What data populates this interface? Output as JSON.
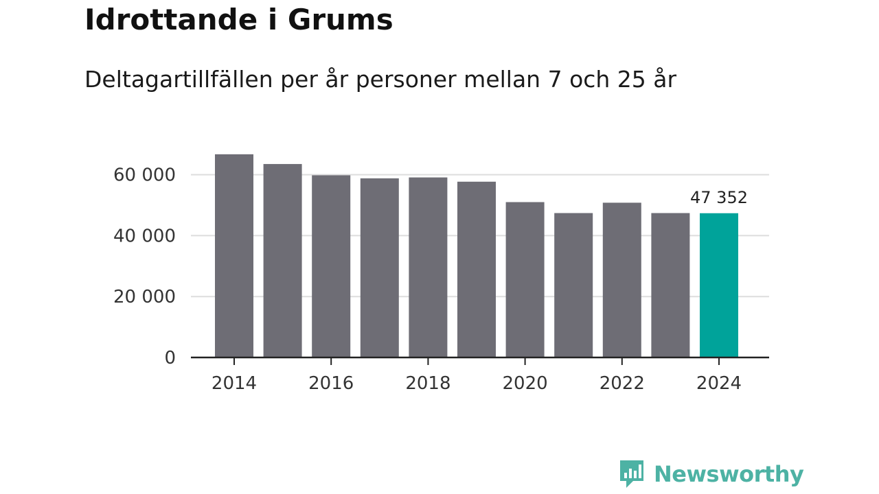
{
  "header": {
    "title": "Idrottande i Grums",
    "subtitle": "Deltagartillfällen per år personer mellan 7 och 25 år"
  },
  "brand": {
    "name": "Newsworthy",
    "color": "#4db2a4"
  },
  "colors": {
    "bar": "#6e6d75",
    "highlight": "#00a39a",
    "grid": "#dddddd",
    "axis": "#222222"
  },
  "chart_data": {
    "type": "bar",
    "categories": [
      "2014",
      "2015",
      "2016",
      "2017",
      "2018",
      "2019",
      "2020",
      "2021",
      "2022",
      "2023",
      "2024"
    ],
    "values": [
      66700,
      63500,
      59800,
      58800,
      59100,
      57700,
      51000,
      47400,
      50800,
      47400,
      47352
    ],
    "highlight_index": 10,
    "data_labels": [
      {
        "index": 10,
        "text": "47 352"
      }
    ],
    "yticks": [
      0,
      20000,
      40000,
      60000
    ],
    "ytick_labels": [
      "0",
      "20 000",
      "40 000",
      "60 000"
    ],
    "xticks": [
      "2014",
      "2016",
      "2018",
      "2020",
      "2022",
      "2024"
    ],
    "ylim": [
      0,
      70000
    ],
    "grid": true,
    "title": "",
    "xlabel": "",
    "ylabel": ""
  }
}
